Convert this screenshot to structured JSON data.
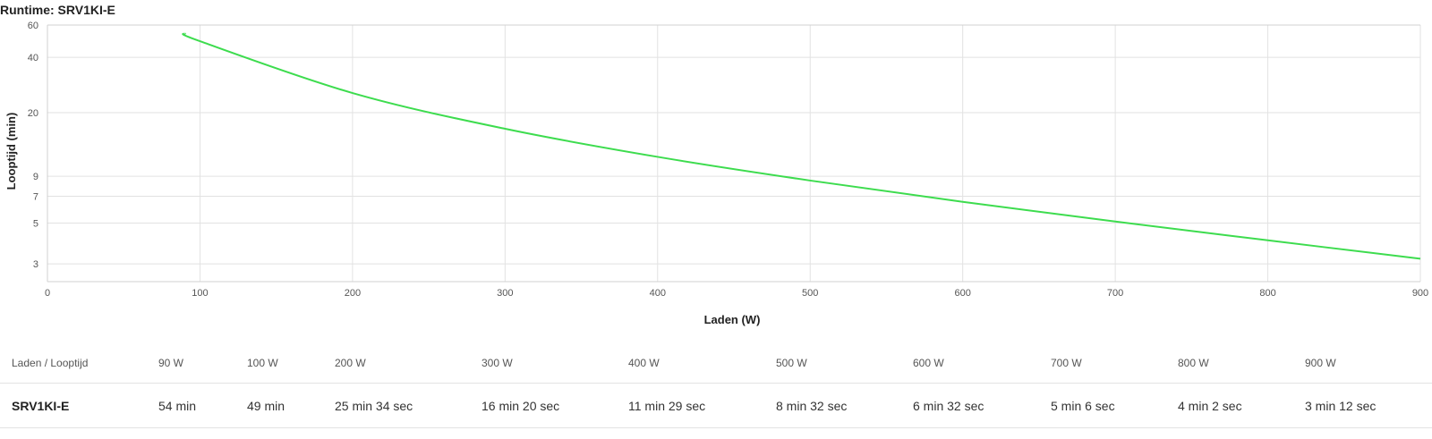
{
  "chart_data": {
    "type": "line",
    "title": "Runtime: SRV1KI-E",
    "xlabel": "Laden (W)",
    "ylabel": "Looptijd (min)",
    "xlim": [
      0,
      900
    ],
    "ylim": [
      2.4,
      60
    ],
    "yscale": "log",
    "grid": true,
    "x_ticks": [
      "0",
      "100",
      "200",
      "300",
      "400",
      "500",
      "600",
      "700",
      "800",
      "900"
    ],
    "y_ticks": [
      "60",
      "40",
      "20",
      "9",
      "7",
      "5",
      "3"
    ],
    "series": [
      {
        "color": "#3ddc4e",
        "x": [
          90,
          100,
          200,
          300,
          400,
          500,
          600,
          700,
          800,
          900
        ],
        "y": [
          54,
          49,
          25.57,
          16.33,
          11.48,
          8.53,
          6.53,
          5.1,
          4.03,
          3.2
        ]
      }
    ]
  },
  "table": {
    "headers": [
      "Laden / Looptijd",
      "90 W",
      "100 W",
      "200 W",
      "300 W",
      "400 W",
      "500 W",
      "600 W",
      "700 W",
      "800 W",
      "900 W"
    ],
    "row": {
      "label": "SRV1KI-E",
      "values": [
        "54 min",
        "49 min",
        "25 min 34 sec",
        "16 min 20 sec",
        "11 min 29 sec",
        "8 min 32 sec",
        "6 min 32 sec",
        "5 min 6 sec",
        "4 min 2 sec",
        "3 min 12 sec"
      ]
    }
  }
}
